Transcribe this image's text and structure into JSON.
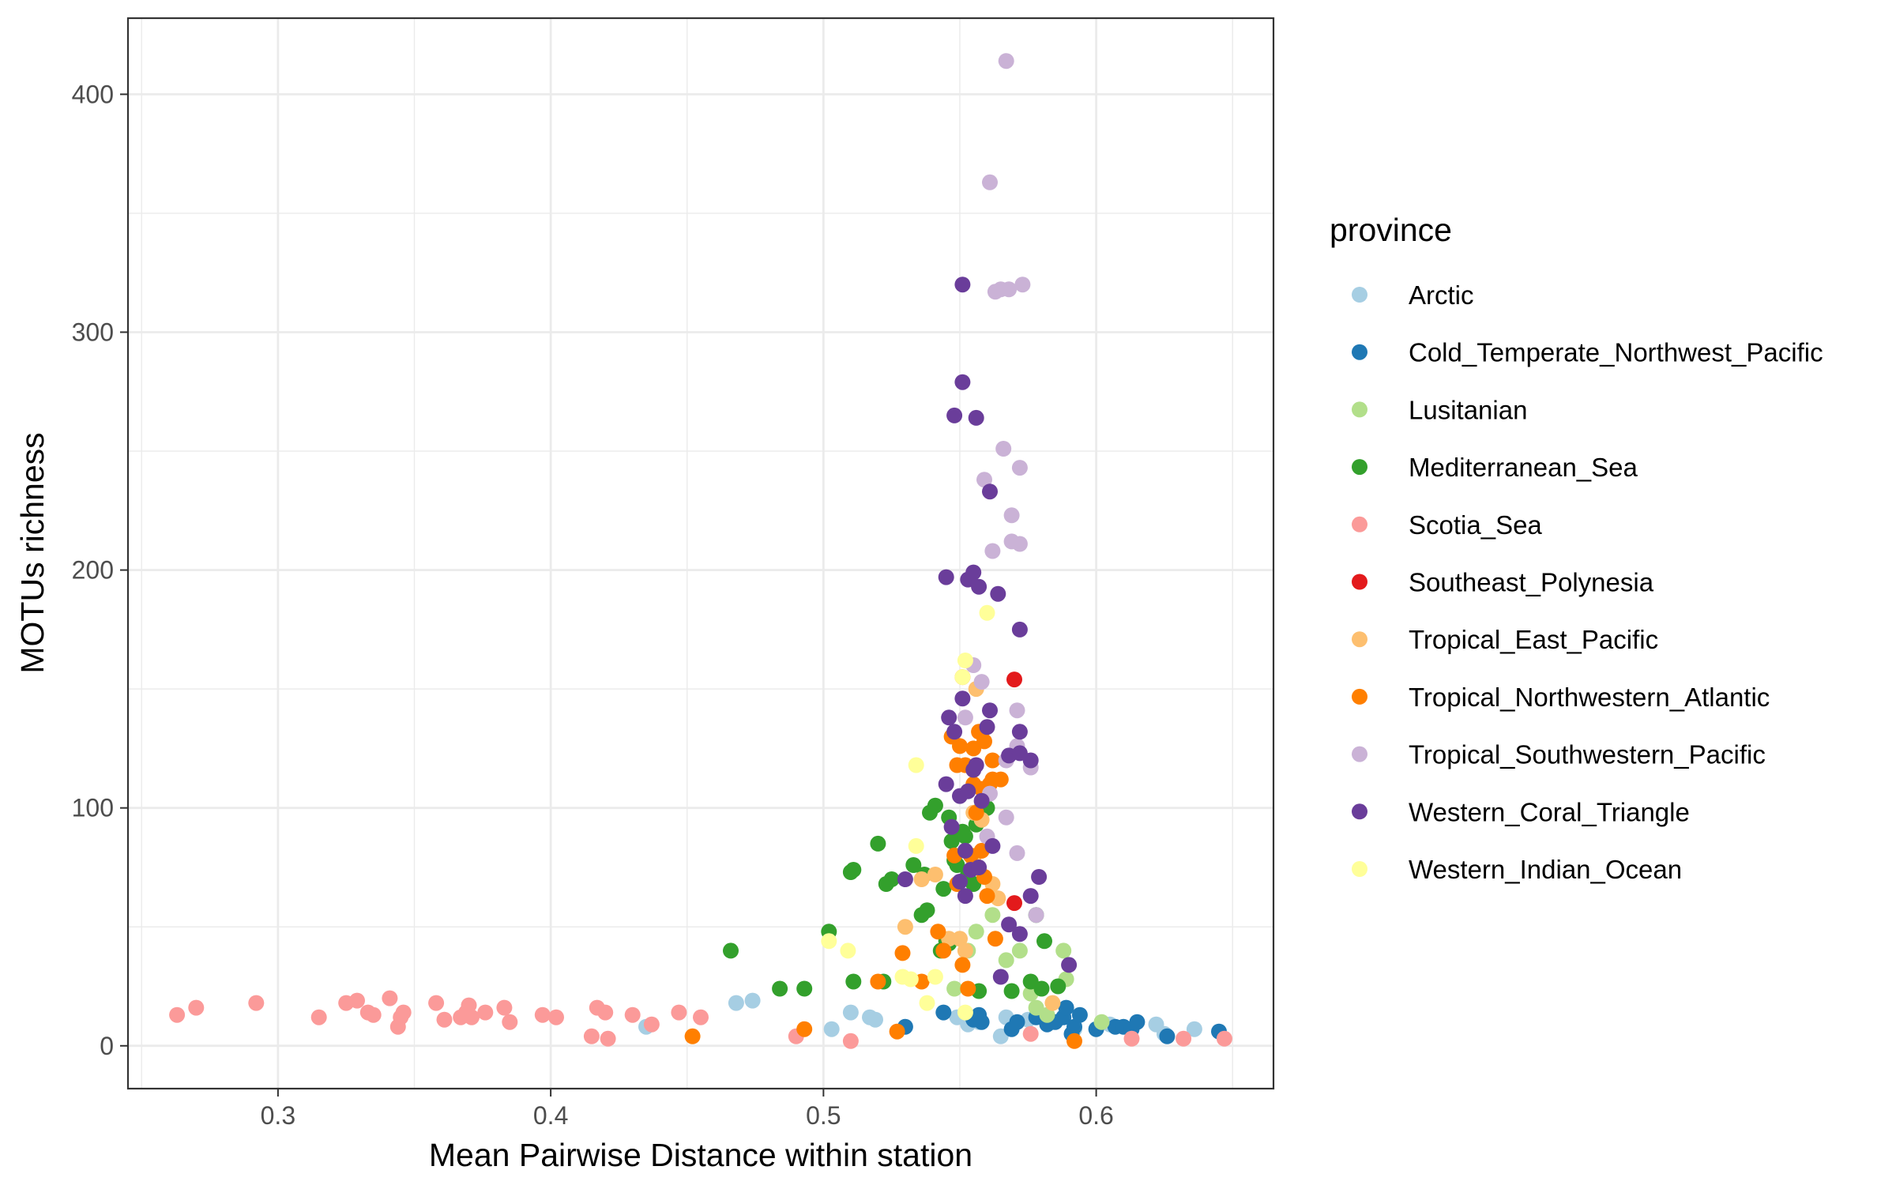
{
  "chart_data": {
    "type": "scatter",
    "xlabel": "Mean Pairwise Distance within station",
    "ylabel": "MOTUs richness",
    "xlim": [
      0.245,
      0.665
    ],
    "ylim": [
      -18,
      432
    ],
    "x_ticks": [
      0.3,
      0.4,
      0.5,
      0.6
    ],
    "x_tick_labels": [
      "0.3",
      "0.4",
      "0.5",
      "0.6"
    ],
    "y_ticks": [
      0,
      100,
      200,
      300,
      400
    ],
    "y_tick_labels": [
      "0",
      "100",
      "200",
      "300",
      "400"
    ],
    "grid": true,
    "legend": {
      "title": "province",
      "position": "right"
    },
    "series": [
      {
        "name": "Arctic",
        "color": "#a6cee3",
        "points": [
          [
            0.435,
            8
          ],
          [
            0.468,
            18
          ],
          [
            0.474,
            19
          ],
          [
            0.503,
            7
          ],
          [
            0.51,
            14
          ],
          [
            0.517,
            12
          ],
          [
            0.519,
            11
          ],
          [
            0.549,
            12
          ],
          [
            0.553,
            9
          ],
          [
            0.557,
            10
          ],
          [
            0.565,
            4
          ],
          [
            0.567,
            12
          ],
          [
            0.575,
            11
          ],
          [
            0.584,
            10
          ],
          [
            0.592,
            7
          ],
          [
            0.605,
            9
          ],
          [
            0.622,
            9
          ],
          [
            0.625,
            5
          ],
          [
            0.636,
            7
          ]
        ]
      },
      {
        "name": "Cold_Temperate_Northwest_Pacific",
        "color": "#1f78b4",
        "points": [
          [
            0.53,
            8
          ],
          [
            0.544,
            14
          ],
          [
            0.555,
            11
          ],
          [
            0.557,
            13
          ],
          [
            0.558,
            10
          ],
          [
            0.569,
            7
          ],
          [
            0.571,
            10
          ],
          [
            0.578,
            12
          ],
          [
            0.582,
            9
          ],
          [
            0.585,
            10
          ],
          [
            0.588,
            12
          ],
          [
            0.589,
            16
          ],
          [
            0.591,
            5
          ],
          [
            0.592,
            8
          ],
          [
            0.594,
            13
          ],
          [
            0.6,
            7
          ],
          [
            0.607,
            8
          ],
          [
            0.61,
            8
          ],
          [
            0.613,
            7
          ],
          [
            0.615,
            10
          ],
          [
            0.626,
            4
          ],
          [
            0.645,
            6
          ]
        ]
      },
      {
        "name": "Lusitanian",
        "color": "#b2df8a",
        "points": [
          [
            0.548,
            24
          ],
          [
            0.553,
            40
          ],
          [
            0.556,
            48
          ],
          [
            0.562,
            55
          ],
          [
            0.567,
            36
          ],
          [
            0.572,
            40
          ],
          [
            0.576,
            22
          ],
          [
            0.578,
            16
          ],
          [
            0.582,
            13
          ],
          [
            0.588,
            40
          ],
          [
            0.589,
            28
          ],
          [
            0.602,
            10
          ]
        ]
      },
      {
        "name": "Mediterranean_Sea",
        "color": "#33a02c",
        "points": [
          [
            0.466,
            40
          ],
          [
            0.484,
            24
          ],
          [
            0.493,
            24
          ],
          [
            0.502,
            48
          ],
          [
            0.51,
            73
          ],
          [
            0.511,
            74
          ],
          [
            0.511,
            27
          ],
          [
            0.52,
            85
          ],
          [
            0.522,
            27
          ],
          [
            0.523,
            68
          ],
          [
            0.525,
            70
          ],
          [
            0.533,
            76
          ],
          [
            0.536,
            55
          ],
          [
            0.537,
            72
          ],
          [
            0.538,
            57
          ],
          [
            0.539,
            98
          ],
          [
            0.541,
            101
          ],
          [
            0.543,
            40
          ],
          [
            0.544,
            66
          ],
          [
            0.545,
            44
          ],
          [
            0.546,
            43
          ],
          [
            0.546,
            96
          ],
          [
            0.547,
            86
          ],
          [
            0.548,
            78
          ],
          [
            0.549,
            76
          ],
          [
            0.551,
            90
          ],
          [
            0.552,
            88
          ],
          [
            0.553,
            72
          ],
          [
            0.555,
            68
          ],
          [
            0.556,
            93
          ],
          [
            0.557,
            23
          ],
          [
            0.558,
            100
          ],
          [
            0.56,
            100
          ],
          [
            0.569,
            23
          ],
          [
            0.576,
            27
          ],
          [
            0.578,
            55
          ],
          [
            0.58,
            24
          ],
          [
            0.581,
            44
          ],
          [
            0.586,
            25
          ]
        ]
      },
      {
        "name": "Scotia_Sea",
        "color": "#fb9a99",
        "points": [
          [
            0.263,
            13
          ],
          [
            0.27,
            16
          ],
          [
            0.292,
            18
          ],
          [
            0.315,
            12
          ],
          [
            0.325,
            18
          ],
          [
            0.329,
            19
          ],
          [
            0.333,
            14
          ],
          [
            0.335,
            13
          ],
          [
            0.341,
            20
          ],
          [
            0.344,
            8
          ],
          [
            0.345,
            12
          ],
          [
            0.346,
            14
          ],
          [
            0.358,
            18
          ],
          [
            0.361,
            11
          ],
          [
            0.367,
            12
          ],
          [
            0.369,
            14
          ],
          [
            0.37,
            17
          ],
          [
            0.371,
            12
          ],
          [
            0.376,
            14
          ],
          [
            0.383,
            16
          ],
          [
            0.385,
            10
          ],
          [
            0.397,
            13
          ],
          [
            0.402,
            12
          ],
          [
            0.415,
            4
          ],
          [
            0.417,
            16
          ],
          [
            0.42,
            14
          ],
          [
            0.421,
            3
          ],
          [
            0.43,
            13
          ],
          [
            0.437,
            9
          ],
          [
            0.447,
            14
          ],
          [
            0.455,
            12
          ],
          [
            0.49,
            4
          ],
          [
            0.51,
            2
          ],
          [
            0.576,
            5
          ],
          [
            0.613,
            3
          ],
          [
            0.632,
            3
          ],
          [
            0.647,
            3
          ]
        ]
      },
      {
        "name": "Southeast_Polynesia",
        "color": "#e31a1c",
        "points": [
          [
            0.57,
            154
          ],
          [
            0.57,
            60
          ]
        ]
      },
      {
        "name": "Tropical_East_Pacific",
        "color": "#fdbf6f",
        "points": [
          [
            0.53,
            50
          ],
          [
            0.536,
            70
          ],
          [
            0.541,
            72
          ],
          [
            0.546,
            45
          ],
          [
            0.55,
            45
          ],
          [
            0.552,
            40
          ],
          [
            0.555,
            78
          ],
          [
            0.555,
            98
          ],
          [
            0.556,
            150
          ],
          [
            0.558,
            95
          ],
          [
            0.562,
            68
          ],
          [
            0.564,
            62
          ],
          [
            0.584,
            18
          ]
        ]
      },
      {
        "name": "Tropical_Northwestern_Atlantic",
        "color": "#ff7f00",
        "points": [
          [
            0.452,
            4
          ],
          [
            0.493,
            7
          ],
          [
            0.52,
            27
          ],
          [
            0.527,
            6
          ],
          [
            0.529,
            39
          ],
          [
            0.536,
            27
          ],
          [
            0.542,
            48
          ],
          [
            0.544,
            40
          ],
          [
            0.547,
            130
          ],
          [
            0.548,
            80
          ],
          [
            0.549,
            118
          ],
          [
            0.549,
            68
          ],
          [
            0.55,
            126
          ],
          [
            0.551,
            155
          ],
          [
            0.551,
            34
          ],
          [
            0.552,
            118
          ],
          [
            0.553,
            24
          ],
          [
            0.554,
            80
          ],
          [
            0.555,
            110
          ],
          [
            0.555,
            125
          ],
          [
            0.556,
            98
          ],
          [
            0.557,
            132
          ],
          [
            0.558,
            82
          ],
          [
            0.558,
            108
          ],
          [
            0.559,
            71
          ],
          [
            0.559,
            128
          ],
          [
            0.56,
            63
          ],
          [
            0.561,
            110
          ],
          [
            0.562,
            112
          ],
          [
            0.562,
            120
          ],
          [
            0.563,
            45
          ],
          [
            0.565,
            112
          ],
          [
            0.592,
            2
          ]
        ]
      },
      {
        "name": "Tropical_Southwestern_Pacific",
        "color": "#cab2d6",
        "points": [
          [
            0.567,
            414
          ],
          [
            0.561,
            363
          ],
          [
            0.563,
            317
          ],
          [
            0.565,
            318
          ],
          [
            0.568,
            318
          ],
          [
            0.573,
            320
          ],
          [
            0.566,
            251
          ],
          [
            0.572,
            243
          ],
          [
            0.559,
            238
          ],
          [
            0.569,
            223
          ],
          [
            0.562,
            208
          ],
          [
            0.569,
            212
          ],
          [
            0.572,
            211
          ],
          [
            0.555,
            160
          ],
          [
            0.558,
            153
          ],
          [
            0.552,
            138
          ],
          [
            0.571,
            141
          ],
          [
            0.567,
            120
          ],
          [
            0.571,
            126
          ],
          [
            0.576,
            117
          ],
          [
            0.561,
            106
          ],
          [
            0.567,
            96
          ],
          [
            0.571,
            81
          ],
          [
            0.56,
            88
          ],
          [
            0.578,
            55
          ]
        ]
      },
      {
        "name": "Western_Coral_Triangle",
        "color": "#6a3d9a",
        "points": [
          [
            0.551,
            320
          ],
          [
            0.551,
            279
          ],
          [
            0.548,
            265
          ],
          [
            0.556,
            264
          ],
          [
            0.561,
            233
          ],
          [
            0.545,
            197
          ],
          [
            0.553,
            196
          ],
          [
            0.555,
            199
          ],
          [
            0.557,
            193
          ],
          [
            0.564,
            190
          ],
          [
            0.572,
            175
          ],
          [
            0.546,
            138
          ],
          [
            0.551,
            146
          ],
          [
            0.548,
            132
          ],
          [
            0.561,
            141
          ],
          [
            0.56,
            134
          ],
          [
            0.556,
            118
          ],
          [
            0.572,
            132
          ],
          [
            0.568,
            122
          ],
          [
            0.572,
            123
          ],
          [
            0.576,
            120
          ],
          [
            0.555,
            116
          ],
          [
            0.547,
            92
          ],
          [
            0.545,
            110
          ],
          [
            0.55,
            105
          ],
          [
            0.553,
            107
          ],
          [
            0.558,
            103
          ],
          [
            0.562,
            84
          ],
          [
            0.552,
            82
          ],
          [
            0.554,
            74
          ],
          [
            0.557,
            75
          ],
          [
            0.55,
            69
          ],
          [
            0.568,
            51
          ],
          [
            0.572,
            47
          ],
          [
            0.565,
            29
          ],
          [
            0.576,
            63
          ],
          [
            0.579,
            71
          ],
          [
            0.59,
            34
          ],
          [
            0.552,
            63
          ],
          [
            0.53,
            70
          ]
        ]
      },
      {
        "name": "Western_Indian_Ocean",
        "color": "#ffff99",
        "points": [
          [
            0.502,
            44
          ],
          [
            0.509,
            40
          ],
          [
            0.529,
            29
          ],
          [
            0.532,
            28
          ],
          [
            0.534,
            118
          ],
          [
            0.534,
            84
          ],
          [
            0.538,
            18
          ],
          [
            0.541,
            29
          ],
          [
            0.551,
            155
          ],
          [
            0.552,
            162
          ],
          [
            0.552,
            14
          ],
          [
            0.56,
            182
          ]
        ]
      }
    ]
  }
}
